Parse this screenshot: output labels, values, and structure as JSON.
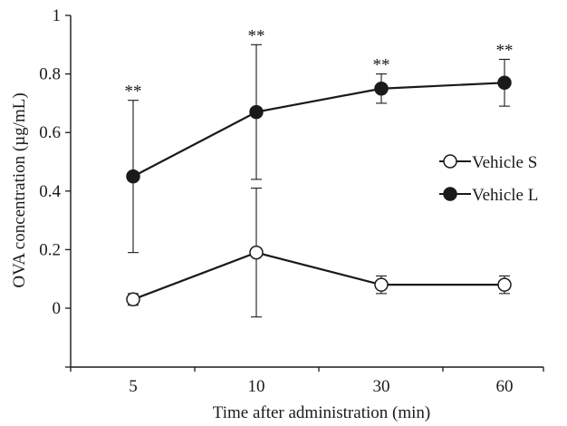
{
  "chart_data": {
    "type": "line",
    "xlabel": "Time after administration (min)",
    "ylabel": "OVA concentration (µg/mL)",
    "categories": [
      "5",
      "10",
      "30",
      "60"
    ],
    "ylim": [
      0,
      1
    ],
    "y_axis_extends_below_zero": true,
    "yticks": [
      "0",
      "0.2",
      "0.4",
      "0.6",
      "0.8",
      "1"
    ],
    "grid": false,
    "legend_position": "right",
    "series": [
      {
        "name": "Vehicle S",
        "marker": "open-circle",
        "values": [
          0.03,
          0.19,
          0.08,
          0.08
        ],
        "error": [
          0.02,
          0.22,
          0.03,
          0.03
        ]
      },
      {
        "name": "Vehicle L",
        "marker": "filled-circle",
        "values": [
          0.45,
          0.67,
          0.75,
          0.77
        ],
        "error": [
          0.26,
          0.23,
          0.05,
          0.08
        ]
      }
    ],
    "annotations": [
      "**",
      "**",
      "**",
      "**"
    ],
    "colors": {
      "line": "#1a1a1a",
      "open_fill": "#ffffff",
      "filled_fill": "#1a1a1a"
    }
  }
}
